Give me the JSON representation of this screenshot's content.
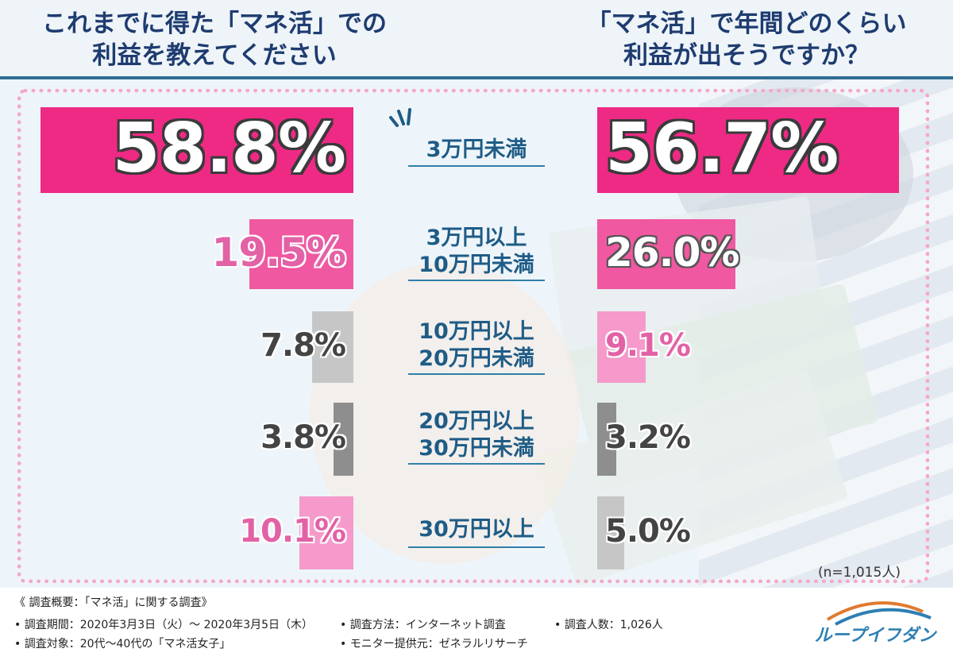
{
  "header": {
    "left_title": "これまでに得た「マネ活」での\n利益を教えてください",
    "right_title": "「マネ活」で年間どのくらい\n利益が出そうですか？"
  },
  "chart_data": {
    "type": "bar",
    "categories": [
      "3万円未満",
      "3万円以上\n10万円未満",
      "10万円以上\n20万円未満",
      "20万円以上\n30万円未満",
      "30万円以上"
    ],
    "series": [
      {
        "values": [
          58.8,
          19.5,
          7.8,
          3.8,
          10.1
        ],
        "labels": [
          "58.8%",
          "19.5%",
          "7.8%",
          "3.8%",
          "10.1%"
        ],
        "colors": [
          "#ee2a85",
          "#f058a1",
          "#c6c6c6",
          "#8e8e8e",
          "#f59acb"
        ]
      },
      {
        "values": [
          56.7,
          26.0,
          9.1,
          3.2,
          5.0
        ],
        "labels": [
          "56.7%",
          "26.0%",
          "9.1%",
          "3.2%",
          "5.0%"
        ],
        "colors": [
          "#ee2a85",
          "#f058a1",
          "#f59acb",
          "#8e8e8e",
          "#c6c6c6"
        ]
      }
    ],
    "orientation": "horizontal-butterfly"
  },
  "n_note": "(n=1,015人)",
  "footer": {
    "title": "《 調査概要：「マネ活」に関する調査》",
    "items": [
      "• 調査期間：2020年3月3日（火）～ 2020年3月5日（木）",
      "• 調査方法：インターネット調査",
      "• 調査人数：1,026人",
      "• 調査対象：20代～40代の「マネ活女子」",
      "• モニター提供元：ゼネラルリサーチ"
    ],
    "logo": "ループイフダン"
  }
}
